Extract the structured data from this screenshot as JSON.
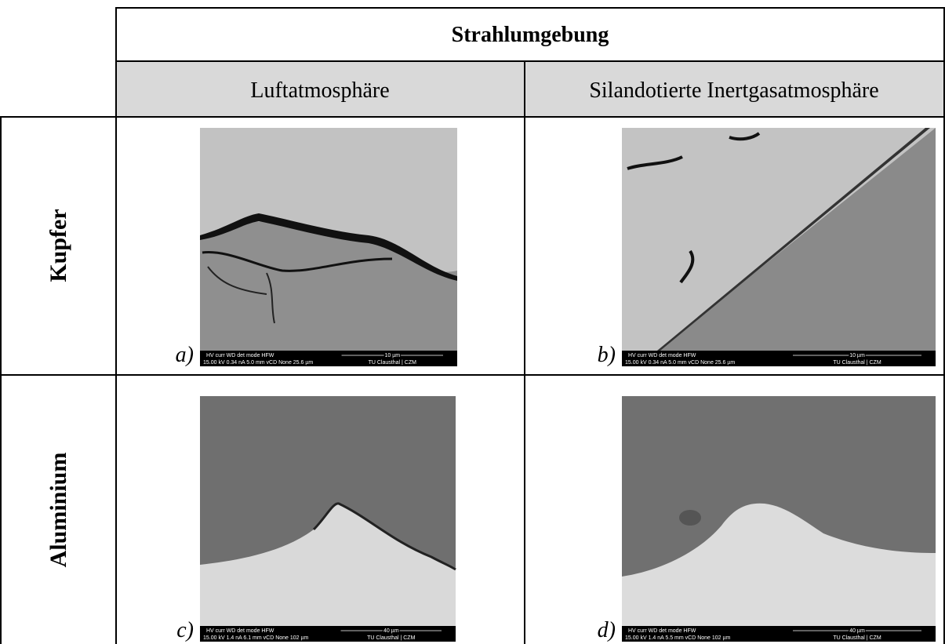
{
  "header": {
    "title": "Strahlumgebung"
  },
  "columns": [
    "Luftatmosphäre",
    "Silandotierte Inertgasatmosphäre"
  ],
  "rows": [
    {
      "label": "Kupfer",
      "images": [
        {
          "label": "a)",
          "info": {
            "fields": "HV    curr    WD    det  mode   HFW",
            "params": "15.00 kV  0.34 nA  5.0 mm  vCD  None  25.6 µm",
            "scale": "10 µm",
            "org": "TU Clausthal | CZM"
          }
        },
        {
          "label": "b)",
          "info": {
            "fields": "HV    curr    WD    det  mode   HFW",
            "params": "15.00 kV  0.34 nA  5.0 mm  vCD  None  25.6 µm",
            "scale": "10 µm",
            "org": "TU Clausthal | CZM"
          }
        }
      ]
    },
    {
      "label": "Aluminium",
      "images": [
        {
          "label": "c)",
          "info": {
            "fields": "HV    curr    WD    det  mode   HFW",
            "params": "15.00 kV  1.4 nA  6.1 mm  vCD  None  102 µm",
            "scale": "40 µm",
            "org": "TU Clausthal | CZM"
          }
        },
        {
          "label": "d)",
          "info": {
            "fields": "HV    curr    WD    det  mode   HFW",
            "params": "15.00 kV  1.4 nA  5.5 mm  vCD  None  102 µm",
            "scale": "40 µm",
            "org": "TU Clausthal | CZM"
          }
        }
      ]
    }
  ]
}
